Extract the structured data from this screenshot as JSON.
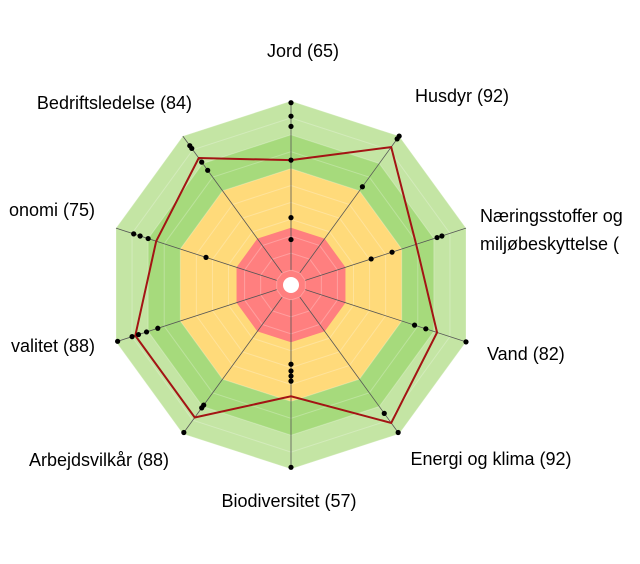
{
  "chart_data": {
    "type": "radar",
    "categories": [
      "Jord (65)",
      "Husdyr (92)",
      [
        "Næringsstoffer og",
        "miljøbeskyttelse ("
      ],
      "Vand (82)",
      "Energi og klima (92)",
      "Biodiversitet (57)",
      "Arbejdsvilkår (88)",
      "valitet (88)",
      "onomi (75)",
      "Bedriftsledelse (84)"
    ],
    "ylim": [
      0,
      100
    ],
    "yticks": [
      0,
      10,
      20,
      30,
      40,
      50,
      60,
      70,
      80,
      90,
      100
    ],
    "grid": true,
    "zones": [
      {
        "from": 80,
        "to": 100,
        "color": "#c4e5a4"
      },
      {
        "from": 60,
        "to": 80,
        "color": "#a6da7c"
      },
      {
        "from": 25,
        "to": 60,
        "color": "#ffda7a"
      },
      {
        "from": 0,
        "to": 25,
        "color": "#ff7f7f"
      }
    ],
    "series": [
      {
        "color": "#a31414",
        "values": [
          65,
          92,
          69,
          82,
          92,
          57,
          88,
          88,
          75,
          84
        ]
      }
    ],
    "points": [
      [
        99,
        91,
        85,
        65,
        31,
        18
      ],
      [
        100,
        98,
        63
      ],
      [
        85,
        82,
        54,
        41
      ],
      [
        100,
        75,
        68
      ],
      [
        99,
        85
      ],
      [
        99,
        48,
        45,
        42,
        38
      ],
      [
        99,
        81,
        79
      ],
      [
        99,
        90,
        86,
        81,
        74
      ],
      [
        89,
        85,
        80,
        44
      ],
      [
        93,
        91,
        81,
        75
      ]
    ]
  }
}
